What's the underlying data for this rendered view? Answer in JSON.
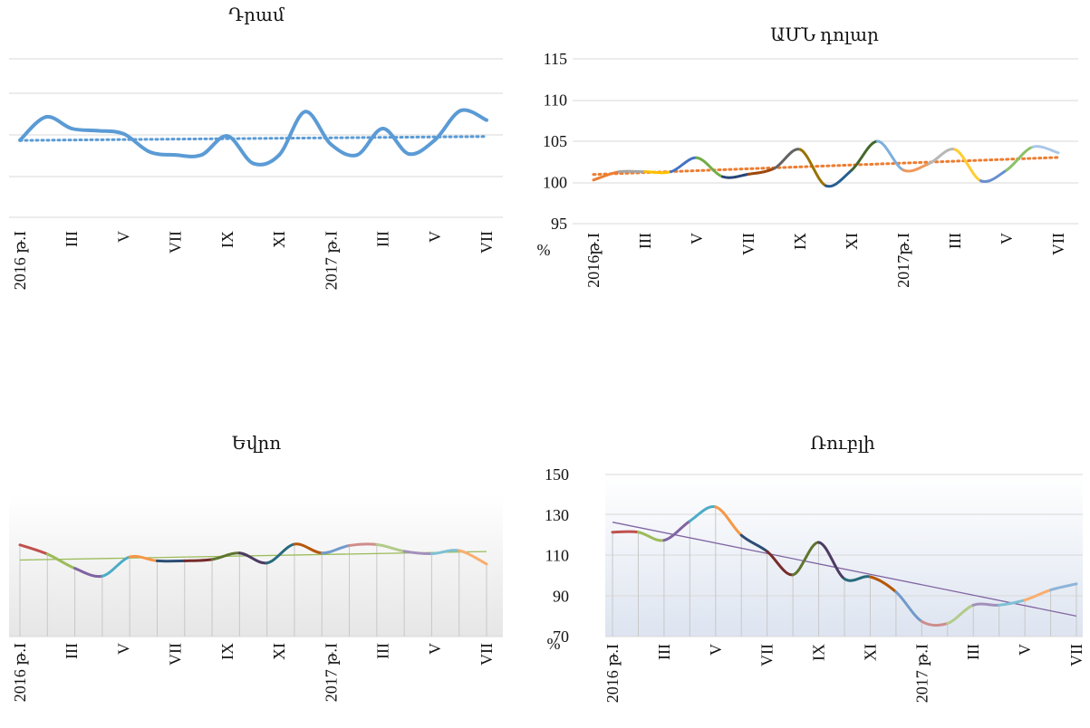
{
  "chart_data": [
    {
      "type": "line",
      "title": "Դրամ",
      "categories": [
        "2016 թ.I",
        "",
        "III",
        "",
        "V",
        "",
        "VII",
        "",
        "IX",
        "",
        "XI",
        "",
        "2017 թ.I",
        "",
        "III",
        "",
        "V",
        "",
        "VII"
      ],
      "x_tick_labels": [
        "2016 թ.I",
        "III",
        "V",
        "VII",
        "IX",
        "XI",
        "2017 թ.I",
        "III",
        "V",
        "VII"
      ],
      "series": [
        {
          "values": [
            102.3,
            104.5,
            103.4,
            103.2,
            102.9,
            101.2,
            100.9,
            100.9,
            102.7,
            100.1,
            100.9,
            105.0,
            101.9,
            100.9,
            103.4,
            101.0,
            102.3,
            105.1,
            104.2
          ]
        }
      ],
      "trendline": "linear-dotted",
      "ylim": [
        95,
        110
      ],
      "y_tick_labels_visible": false,
      "grid": true,
      "colors": {
        "series": "#5b9bd5",
        "trend": "#5b9bd5"
      }
    },
    {
      "type": "line",
      "title": "ԱՄՆ դոլար",
      "ylabel": "%",
      "y_tick_labels": [
        "95",
        "100",
        "105",
        "110",
        "115"
      ],
      "x_tick_labels": [
        "2016թ.I",
        "III",
        "V",
        "VII",
        "IX",
        "XI",
        "2017թ.I",
        "III",
        "V",
        "VII"
      ],
      "series": [
        {
          "values": [
            100.3,
            101.3,
            101.3,
            101.3,
            103.0,
            100.7,
            101.0,
            101.7,
            104.0,
            99.6,
            101.5,
            105.0,
            101.5,
            102.3,
            104.0,
            100.2,
            101.5,
            104.3,
            103.6
          ]
        }
      ],
      "trendline": "linear-dotted",
      "ylim": [
        95,
        115
      ],
      "grid": true,
      "colors": {
        "segments": [
          "#ed7d31",
          "#a5a5a5",
          "#ffc000",
          "#4472c4",
          "#70ad47",
          "#264478",
          "#9e480e",
          "#636363",
          "#997300",
          "#255e91",
          "#43682b",
          "#7cafdd",
          "#f1975a",
          "#b7b7b7",
          "#ffcd33",
          "#698ed0",
          "#8cc168",
          "#aac7e8"
        ],
        "trend": "#ed7d31"
      }
    },
    {
      "type": "area",
      "title": "Եվրո",
      "x_tick_labels": [
        "2016 թ.I",
        "III",
        "V",
        "VII",
        "IX",
        "XI",
        "2017 թ.I",
        "III",
        "V",
        "VII"
      ],
      "series": [
        {
          "values": [
            105.8,
            103.2,
            99.2,
            97.0,
            102.4,
            101.3,
            101.3,
            101.7,
            103.5,
            100.7,
            106.0,
            103.5,
            105.6,
            105.9,
            104.0,
            103.3,
            104.2,
            100.4
          ]
        }
      ],
      "trendline": "linear-solid",
      "ylim": [
        80,
        120
      ],
      "y_tick_labels_visible": false,
      "grid": true,
      "colors": {
        "segments": [
          "#c0504d",
          "#9bbb59",
          "#8064a2",
          "#4bacc6",
          "#f79646",
          "#2c4d75",
          "#772c2a",
          "#5f7530",
          "#4d3b62",
          "#276a7c",
          "#b65708",
          "#729aca",
          "#ce8d8c",
          "#b3cb8a",
          "#a390bb",
          "#7fc0d2",
          "#f9ae6f"
        ],
        "trend": "#9bbb59"
      }
    },
    {
      "type": "area",
      "title": "Ռուբլի",
      "ylabel": "%",
      "y_tick_labels": [
        "70",
        "90",
        "110",
        "130",
        "150"
      ],
      "x_tick_labels": [
        "2016 թ.I",
        "III",
        "V",
        "VII",
        "IX",
        "XI",
        "2017 թ.I",
        "III",
        "V",
        "VII"
      ],
      "series": [
        {
          "values": [
            121.5,
            121.5,
            117.5,
            127.0,
            134.0,
            120.0,
            112.0,
            100.5,
            116.5,
            98.5,
            99.5,
            92.0,
            77.5,
            76.5,
            85.5,
            85.5,
            88.0,
            93.0,
            96.0
          ]
        }
      ],
      "trendline": "linear-solid",
      "ylim": [
        70,
        150
      ],
      "grid": true,
      "colors": {
        "segments": [
          "#c0504d",
          "#9bbb59",
          "#8064a2",
          "#4bacc6",
          "#f79646",
          "#2c4d75",
          "#772c2a",
          "#5f7530",
          "#4d3b62",
          "#276a7c",
          "#b65708",
          "#729aca",
          "#ce8d8c",
          "#b3cb8a",
          "#a390bb",
          "#7fc0d2",
          "#f9ae6f",
          "#8fb4da"
        ],
        "trend": "#8064a2"
      }
    }
  ]
}
